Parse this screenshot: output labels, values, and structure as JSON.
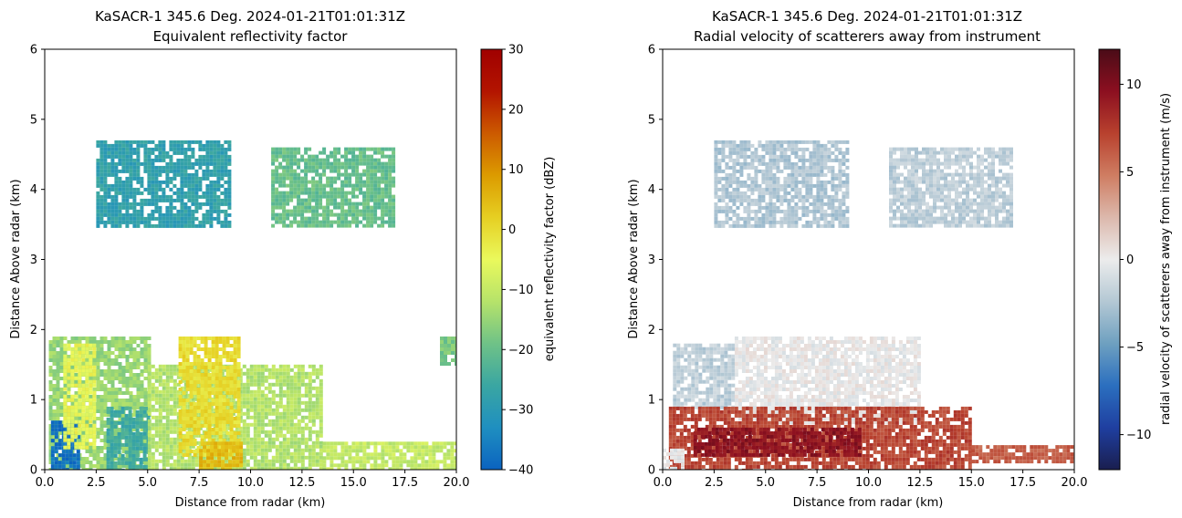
{
  "chart_data": [
    {
      "type": "heatmap",
      "title": "KaSACR-1 345.6 Deg. 2024-01-21T01:01:31Z",
      "subtitle": "Equivalent reflectivity factor",
      "xlabel": "Distance from radar (km)",
      "ylabel": "Distance Above radar  (km)",
      "xlim": [
        0,
        20
      ],
      "ylim": [
        0,
        6
      ],
      "xticks": [
        0,
        2.5,
        5,
        7.5,
        10,
        12.5,
        15,
        17.5,
        20
      ],
      "xtick_labels": [
        "0.0",
        "2.5",
        "5.0",
        "7.5",
        "10.0",
        "12.5",
        "15.0",
        "17.5",
        "20.0"
      ],
      "yticks": [
        0,
        1,
        2,
        3,
        4,
        5,
        6
      ],
      "ytick_labels": [
        "0",
        "1",
        "2",
        "3",
        "4",
        "5",
        "6"
      ],
      "colorbar": {
        "label": "equivalent reflectivity factor (dBZ)",
        "range": [
          -40,
          30
        ],
        "ticks": [
          -40,
          -30,
          -20,
          -10,
          0,
          10,
          20,
          30
        ],
        "tick_labels": [
          "−40",
          "−30",
          "−20",
          "−10",
          "0",
          "10",
          "20",
          "30"
        ],
        "colormap": [
          "#0b63c0",
          "#1f8fc0",
          "#3aa6a2",
          "#6fc287",
          "#b6e36a",
          "#eaf95c",
          "#e6cf22",
          "#dc9b00",
          "#cc5a00",
          "#b31400",
          "#a00000"
        ]
      },
      "regions": [
        {
          "x": [
            0.2,
            5.0
          ],
          "y": [
            0.0,
            1.9
          ],
          "value": -15
        },
        {
          "x": [
            0.3,
            1.6
          ],
          "y": [
            0.0,
            0.7
          ],
          "value": -38
        },
        {
          "x": [
            0.9,
            2.4
          ],
          "y": [
            0.3,
            1.8
          ],
          "value": -5
        },
        {
          "x": [
            3.0,
            5.0
          ],
          "y": [
            0.0,
            0.9
          ],
          "value": -25
        },
        {
          "x": [
            5.0,
            13.5
          ],
          "y": [
            0.0,
            1.5
          ],
          "value": -12
        },
        {
          "x": [
            6.5,
            9.5
          ],
          "y": [
            0.2,
            1.9
          ],
          "value": 0
        },
        {
          "x": [
            7.5,
            9.5
          ],
          "y": [
            0.0,
            0.4
          ],
          "value": 5
        },
        {
          "x": [
            13.5,
            20.0
          ],
          "y": [
            0.0,
            0.4
          ],
          "value": -10
        },
        {
          "x": [
            2.5,
            9.0
          ],
          "y": [
            3.5,
            4.7
          ],
          "value": -28
        },
        {
          "x": [
            11.0,
            17.0
          ],
          "y": [
            3.5,
            4.6
          ],
          "value": -20
        },
        {
          "x": [
            19.2,
            20.0
          ],
          "y": [
            1.5,
            1.9
          ],
          "value": -18
        }
      ]
    },
    {
      "type": "heatmap",
      "title": "KaSACR-1 345.6 Deg. 2024-01-21T01:01:31Z",
      "subtitle": "Radial velocity of scatterers away from instrument",
      "xlabel": "Distance from radar (km)",
      "ylabel": "Distance Above radar  (km)",
      "xlim": [
        0,
        20
      ],
      "ylim": [
        0,
        6
      ],
      "xticks": [
        0,
        2.5,
        5,
        7.5,
        10,
        12.5,
        15,
        17.5,
        20
      ],
      "xtick_labels": [
        "0.0",
        "2.5",
        "5.0",
        "7.5",
        "10.0",
        "12.5",
        "15.0",
        "17.5",
        "20.0"
      ],
      "yticks": [
        0,
        1,
        2,
        3,
        4,
        5,
        6
      ],
      "ytick_labels": [
        "0",
        "1",
        "2",
        "3",
        "4",
        "5",
        "6"
      ],
      "colorbar": {
        "label": "radial velocity of scatterers away from instrument (m/s)",
        "range": [
          -12,
          12
        ],
        "ticks": [
          -10,
          -5,
          0,
          5,
          10
        ],
        "tick_labels": [
          "−10",
          "−5",
          "0",
          "5",
          "10"
        ],
        "colormap": [
          "#1a1e4f",
          "#1f3fa0",
          "#2b6fbf",
          "#6ea0c0",
          "#b4c8d4",
          "#ececec",
          "#dcb8ac",
          "#cf7d62",
          "#b8412e",
          "#8c0f20",
          "#4a0c17"
        ]
      },
      "regions": [
        {
          "x": [
            0.5,
            3.5
          ],
          "y": [
            0.9,
            1.8
          ],
          "value": -2
        },
        {
          "x": [
            3.5,
            12.5
          ],
          "y": [
            0.7,
            1.9
          ],
          "value": 0
        },
        {
          "x": [
            0.3,
            15.0
          ],
          "y": [
            0.0,
            0.9
          ],
          "value": 7
        },
        {
          "x": [
            1.5,
            9.5
          ],
          "y": [
            0.2,
            0.6
          ],
          "value": 9.5
        },
        {
          "x": [
            15.0,
            20.0
          ],
          "y": [
            0.1,
            0.35
          ],
          "value": 6
        },
        {
          "x": [
            0.0,
            1.0
          ],
          "y": [
            0.0,
            0.3
          ],
          "value": 0
        },
        {
          "x": [
            2.5,
            9.0
          ],
          "y": [
            3.5,
            4.7
          ],
          "value": -2.5
        },
        {
          "x": [
            11.0,
            17.0
          ],
          "y": [
            3.5,
            4.6
          ],
          "value": -2
        }
      ]
    }
  ]
}
